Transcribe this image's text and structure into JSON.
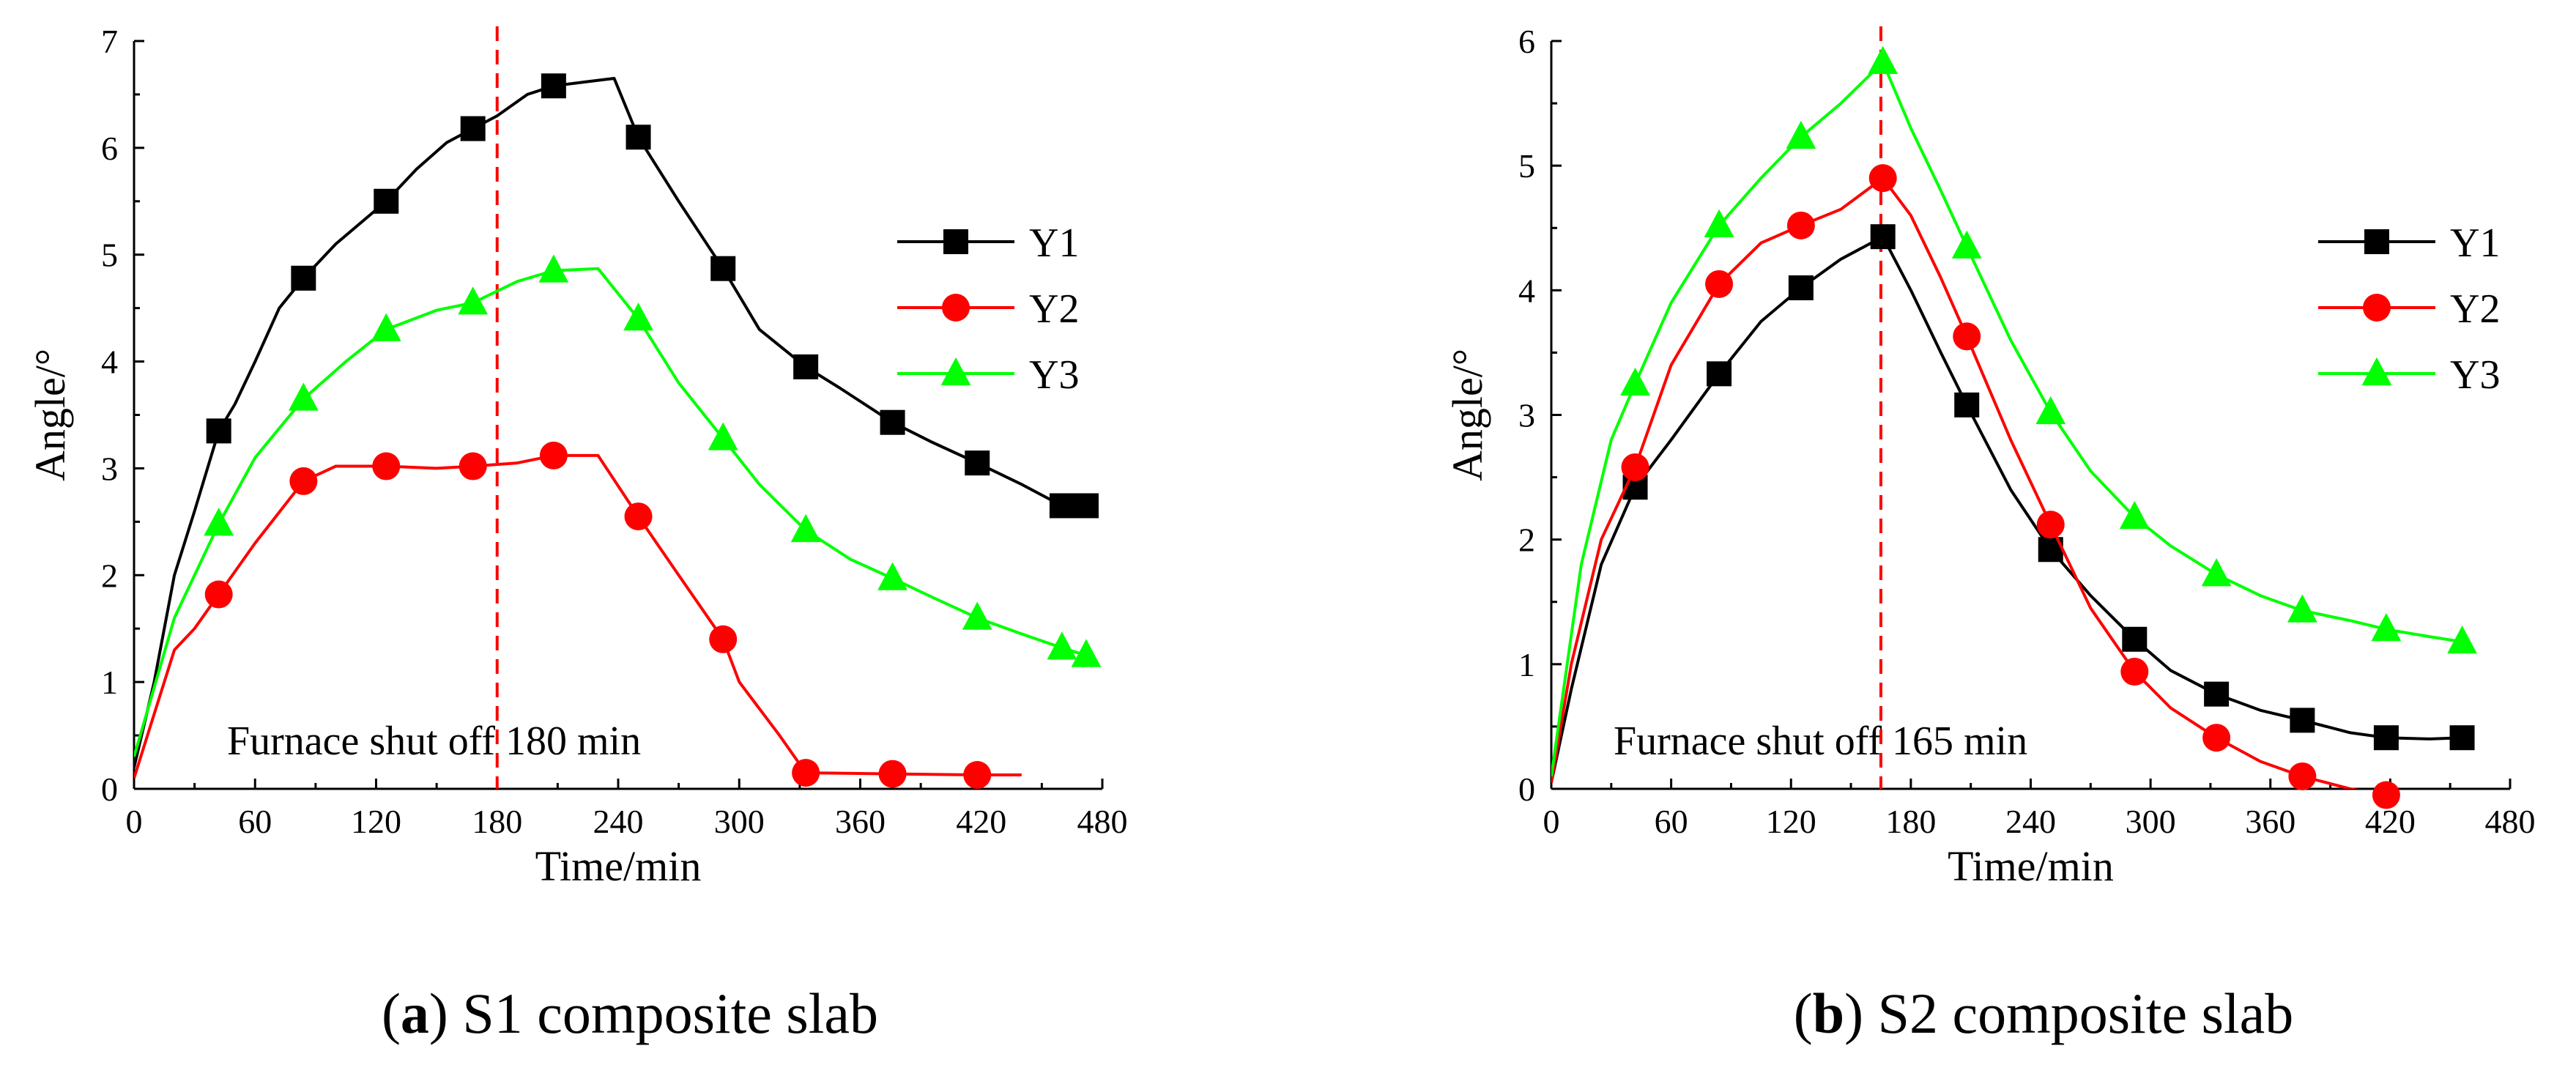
{
  "chart_data": [
    {
      "type": "line",
      "caption_letter": "a",
      "caption_text": "S1 composite slab",
      "xlabel": "Time/min",
      "ylabel": "Angle/°",
      "xlim": [
        0,
        480
      ],
      "ylim": [
        0,
        7
      ],
      "xticks": [
        0,
        60,
        120,
        180,
        240,
        300,
        360,
        420,
        480
      ],
      "yticks": [
        0,
        1,
        2,
        3,
        4,
        5,
        6,
        7
      ],
      "grid": false,
      "legend_position": "right",
      "annotation": "Furnace shut off 180 min",
      "vline_x": 180,
      "vline_color": "#ff0000",
      "series": [
        {
          "name": "Y1",
          "color": "#000000",
          "marker": "square",
          "line": [
            [
              0,
              0.2
            ],
            [
              10,
              1.0
            ],
            [
              20,
              2.0
            ],
            [
              30,
              2.6
            ],
            [
              42,
              3.35
            ],
            [
              50,
              3.6
            ],
            [
              60,
              4.0
            ],
            [
              72,
              4.5
            ],
            [
              84,
              4.78
            ],
            [
              100,
              5.1
            ],
            [
              125,
              5.5
            ],
            [
              140,
              5.8
            ],
            [
              155,
              6.05
            ],
            [
              168,
              6.18
            ],
            [
              180,
              6.3
            ],
            [
              195,
              6.5
            ],
            [
              208,
              6.58
            ],
            [
              225,
              6.62
            ],
            [
              238,
              6.65
            ],
            [
              250,
              6.1
            ],
            [
              270,
              5.5
            ],
            [
              292,
              4.87
            ],
            [
              310,
              4.3
            ],
            [
              333,
              3.95
            ],
            [
              350,
              3.75
            ],
            [
              376,
              3.43
            ],
            [
              395,
              3.25
            ],
            [
              418,
              3.05
            ],
            [
              440,
              2.85
            ],
            [
              460,
              2.65
            ],
            [
              472,
              2.65
            ]
          ],
          "markers": [
            [
              42,
              3.35
            ],
            [
              84,
              4.78
            ],
            [
              125,
              5.5
            ],
            [
              168,
              6.18
            ],
            [
              208,
              6.58
            ],
            [
              250,
              6.1
            ],
            [
              292,
              4.87
            ],
            [
              333,
              3.95
            ],
            [
              376,
              3.43
            ],
            [
              418,
              3.05
            ],
            [
              460,
              2.65
            ],
            [
              472,
              2.65
            ]
          ]
        },
        {
          "name": "Y2",
          "color": "#ff0000",
          "marker": "circle",
          "line": [
            [
              0,
              0.1
            ],
            [
              10,
              0.7
            ],
            [
              20,
              1.3
            ],
            [
              30,
              1.5
            ],
            [
              42,
              1.82
            ],
            [
              60,
              2.3
            ],
            [
              84,
              2.88
            ],
            [
              100,
              3.02
            ],
            [
              125,
              3.02
            ],
            [
              150,
              3.0
            ],
            [
              168,
              3.02
            ],
            [
              190,
              3.05
            ],
            [
              208,
              3.12
            ],
            [
              230,
              3.12
            ],
            [
              250,
              2.55
            ],
            [
              270,
              2.0
            ],
            [
              292,
              1.4
            ],
            [
              300,
              1.0
            ],
            [
              320,
              0.5
            ],
            [
              333,
              0.15
            ],
            [
              376,
              0.14
            ],
            [
              418,
              0.13
            ],
            [
              440,
              0.13
            ]
          ],
          "markers": [
            [
              42,
              1.82
            ],
            [
              84,
              2.88
            ],
            [
              125,
              3.02
            ],
            [
              168,
              3.02
            ],
            [
              208,
              3.12
            ],
            [
              250,
              2.55
            ],
            [
              292,
              1.4
            ],
            [
              333,
              0.15
            ],
            [
              376,
              0.14
            ],
            [
              418,
              0.13
            ]
          ]
        },
        {
          "name": "Y3",
          "color": "#00ff00",
          "marker": "triangle",
          "line": [
            [
              0,
              0.3
            ],
            [
              20,
              1.6
            ],
            [
              42,
              2.48
            ],
            [
              60,
              3.1
            ],
            [
              84,
              3.65
            ],
            [
              105,
              4.0
            ],
            [
              125,
              4.3
            ],
            [
              150,
              4.48
            ],
            [
              168,
              4.55
            ],
            [
              190,
              4.75
            ],
            [
              208,
              4.85
            ],
            [
              230,
              4.87
            ],
            [
              250,
              4.4
            ],
            [
              270,
              3.8
            ],
            [
              292,
              3.28
            ],
            [
              310,
              2.85
            ],
            [
              333,
              2.42
            ],
            [
              355,
              2.15
            ],
            [
              376,
              1.97
            ],
            [
              395,
              1.8
            ],
            [
              418,
              1.6
            ],
            [
              440,
              1.45
            ],
            [
              460,
              1.32
            ],
            [
              472,
              1.25
            ]
          ],
          "markers": [
            [
              42,
              2.48
            ],
            [
              84,
              3.65
            ],
            [
              125,
              4.3
            ],
            [
              168,
              4.55
            ],
            [
              208,
              4.85
            ],
            [
              250,
              4.4
            ],
            [
              292,
              3.28
            ],
            [
              333,
              2.42
            ],
            [
              376,
              1.97
            ],
            [
              418,
              1.6
            ],
            [
              460,
              1.32
            ],
            [
              472,
              1.25
            ]
          ]
        }
      ]
    },
    {
      "type": "line",
      "caption_letter": "b",
      "caption_text": "S2 composite slab",
      "xlabel": "Time/min",
      "ylabel": "Angle/°",
      "xlim": [
        0,
        480
      ],
      "ylim": [
        0,
        6
      ],
      "xticks": [
        0,
        60,
        120,
        180,
        240,
        300,
        360,
        420,
        480
      ],
      "yticks": [
        0,
        1,
        2,
        3,
        4,
        5,
        6
      ],
      "grid": false,
      "legend_position": "right",
      "annotation": "Furnace shut off 165 min",
      "vline_x": 165,
      "vline_color": "#ff0000",
      "series": [
        {
          "name": "Y1",
          "color": "#000000",
          "marker": "square",
          "line": [
            [
              0,
              0.05
            ],
            [
              10,
              0.8
            ],
            [
              25,
              1.8
            ],
            [
              42,
              2.42
            ],
            [
              60,
              2.8
            ],
            [
              84,
              3.33
            ],
            [
              105,
              3.75
            ],
            [
              125,
              4.02
            ],
            [
              145,
              4.25
            ],
            [
              166,
              4.43
            ],
            [
              180,
              4.0
            ],
            [
              195,
              3.5
            ],
            [
              208,
              3.08
            ],
            [
              230,
              2.4
            ],
            [
              250,
              1.92
            ],
            [
              270,
              1.55
            ],
            [
              292,
              1.2
            ],
            [
              310,
              0.95
            ],
            [
              333,
              0.76
            ],
            [
              355,
              0.63
            ],
            [
              376,
              0.55
            ],
            [
              400,
              0.45
            ],
            [
              418,
              0.41
            ],
            [
              440,
              0.4
            ],
            [
              456,
              0.41
            ]
          ],
          "markers": [
            [
              42,
              2.42
            ],
            [
              84,
              3.33
            ],
            [
              125,
              4.02
            ],
            [
              166,
              4.43
            ],
            [
              208,
              3.08
            ],
            [
              250,
              1.92
            ],
            [
              292,
              1.2
            ],
            [
              333,
              0.76
            ],
            [
              376,
              0.55
            ],
            [
              418,
              0.41
            ],
            [
              456,
              0.41
            ]
          ]
        },
        {
          "name": "Y2",
          "color": "#ff0000",
          "marker": "circle",
          "line": [
            [
              0,
              0.05
            ],
            [
              10,
              1.0
            ],
            [
              25,
              2.0
            ],
            [
              42,
              2.58
            ],
            [
              60,
              3.4
            ],
            [
              84,
              4.05
            ],
            [
              105,
              4.38
            ],
            [
              125,
              4.52
            ],
            [
              145,
              4.65
            ],
            [
              166,
              4.9
            ],
            [
              180,
              4.6
            ],
            [
              195,
              4.1
            ],
            [
              208,
              3.63
            ],
            [
              230,
              2.8
            ],
            [
              250,
              2.12
            ],
            [
              270,
              1.45
            ],
            [
              292,
              0.94
            ],
            [
              310,
              0.65
            ],
            [
              333,
              0.41
            ],
            [
              355,
              0.22
            ],
            [
              376,
              0.1
            ],
            [
              400,
              0.0
            ],
            [
              418,
              -0.05
            ]
          ],
          "markers": [
            [
              42,
              2.58
            ],
            [
              84,
              4.05
            ],
            [
              125,
              4.52
            ],
            [
              166,
              4.9
            ],
            [
              208,
              3.63
            ],
            [
              250,
              2.12
            ],
            [
              292,
              0.94
            ],
            [
              333,
              0.41
            ],
            [
              376,
              0.1
            ],
            [
              418,
              -0.05
            ]
          ]
        },
        {
          "name": "Y3",
          "color": "#00ff00",
          "marker": "triangle",
          "line": [
            [
              0,
              0.1
            ],
            [
              15,
              1.8
            ],
            [
              30,
              2.8
            ],
            [
              42,
              3.25
            ],
            [
              60,
              3.9
            ],
            [
              84,
              4.52
            ],
            [
              105,
              4.9
            ],
            [
              125,
              5.23
            ],
            [
              145,
              5.5
            ],
            [
              166,
              5.83
            ],
            [
              180,
              5.3
            ],
            [
              195,
              4.8
            ],
            [
              208,
              4.35
            ],
            [
              230,
              3.6
            ],
            [
              250,
              3.02
            ],
            [
              270,
              2.55
            ],
            [
              292,
              2.18
            ],
            [
              310,
              1.95
            ],
            [
              333,
              1.72
            ],
            [
              355,
              1.55
            ],
            [
              376,
              1.43
            ],
            [
              400,
              1.35
            ],
            [
              418,
              1.28
            ],
            [
              440,
              1.22
            ],
            [
              456,
              1.18
            ]
          ],
          "markers": [
            [
              42,
              3.25
            ],
            [
              84,
              4.52
            ],
            [
              125,
              5.23
            ],
            [
              166,
              5.83
            ],
            [
              208,
              4.35
            ],
            [
              250,
              3.02
            ],
            [
              292,
              2.18
            ],
            [
              333,
              1.72
            ],
            [
              376,
              1.43
            ],
            [
              418,
              1.28
            ],
            [
              456,
              1.18
            ]
          ]
        }
      ]
    }
  ]
}
